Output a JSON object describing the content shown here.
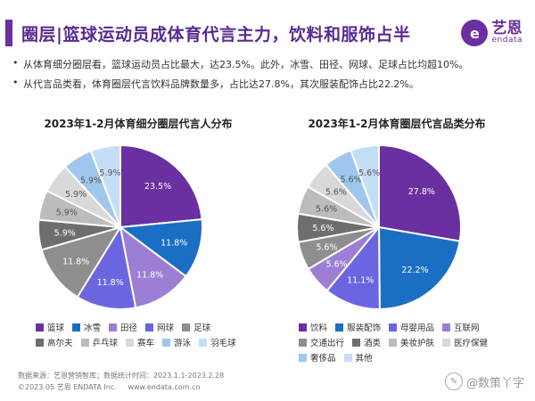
{
  "header": {
    "title": "圈层|篮球运动员成体育代言主力，饮料和服饰占半",
    "logo_cn": "艺恩",
    "logo_en": "endata"
  },
  "bullets": [
    "从体育细分圈层看，篮球运动员占比最大，达23.5%。此外，冰雪、田径、网球、足球占比均超10%。",
    "从代言品类看，体育圈层代言饮料品牌数量多，占比达27.8%，其次服装配饰占比22.2%。"
  ],
  "chart_data": [
    {
      "type": "pie",
      "title": "2023年1-2月体育细分圈层代言人分布",
      "categories": [
        "篮球",
        "冰雪",
        "田径",
        "网球",
        "足球",
        "高尔夫",
        "乒乓球",
        "赛车",
        "游泳",
        "羽毛球"
      ],
      "values": [
        23.5,
        11.8,
        11.8,
        11.8,
        11.8,
        5.9,
        5.9,
        5.9,
        5.9,
        5.9
      ],
      "labels": [
        "23.5%",
        "11.8%",
        "11.8%",
        "11.8%",
        "11.8%",
        "5.9%",
        "5.9%",
        "5.9%",
        "5.9%",
        "5.9%"
      ],
      "colors": [
        "#6a2fa1",
        "#1a6fc4",
        "#9c7fd4",
        "#6b66e0",
        "#8e8e8e",
        "#6e6e6e",
        "#bcbcbc",
        "#d9d9d9",
        "#9fc7ee",
        "#c5def7"
      ],
      "legend_rows": [
        [
          "篮球",
          "冰雪",
          "田径",
          "网球",
          "足球"
        ],
        [
          "高尔夫",
          "乒乓球",
          "赛车",
          "游泳",
          "羽毛球"
        ]
      ]
    },
    {
      "type": "pie",
      "title": "2023年1-2月体育圈层代言品类分布",
      "categories": [
        "饮料",
        "服装配饰",
        "母婴用品",
        "互联网",
        "交通出行",
        "酒类",
        "美妆护肤",
        "医疗保健",
        "奢侈品",
        "其他"
      ],
      "values": [
        27.8,
        22.2,
        11.1,
        5.6,
        5.6,
        5.6,
        5.6,
        5.6,
        5.6,
        5.6
      ],
      "labels": [
        "27.8%",
        "22.2%",
        "11.1%",
        "5.6%",
        "5.6%",
        "5.6%",
        "5.6%",
        "5.6%",
        "5.6%",
        "5.6%"
      ],
      "colors": [
        "#6a2fa1",
        "#1a6fc4",
        "#6b66e0",
        "#9c7fd4",
        "#8e8e8e",
        "#6e6e6e",
        "#bcbcbc",
        "#d9d9d9",
        "#9fc7ee",
        "#c5def7"
      ],
      "legend_rows": [
        [
          "饮料",
          "服装配饰",
          "母婴用品",
          "互联网"
        ],
        [
          "交通出行",
          "酒类",
          "美妆护肤",
          "医疗保健"
        ],
        [
          "奢侈品",
          "其他"
        ]
      ]
    }
  ],
  "footer": {
    "source": "数据来源：艺恩营销智库；数据统计时间：2023.1.1-2023.2.28",
    "copyright": "©2023.05 艺恩 ENDATA Inc.",
    "website": "www.endata.com.cn"
  },
  "watermark": "@数策丫字"
}
